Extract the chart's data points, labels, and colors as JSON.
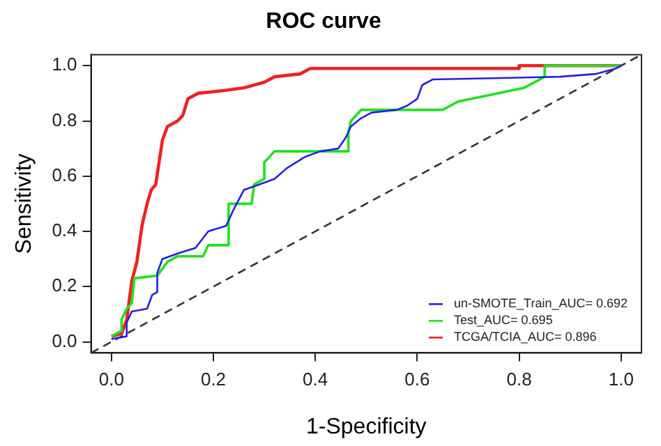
{
  "chart_data": {
    "type": "line",
    "title": "ROC curve",
    "xlabel": "1-Specificity",
    "ylabel": "Sensitivity",
    "xlim": [
      -0.04,
      1.04
    ],
    "ylim": [
      -0.04,
      1.04
    ],
    "xticks": [
      {
        "value": 0,
        "label": "0.0"
      },
      {
        "value": 0.2,
        "label": "0.2"
      },
      {
        "value": 0.4,
        "label": "0.4"
      },
      {
        "value": 0.6,
        "label": "0.6"
      },
      {
        "value": 0.8,
        "label": "0.8"
      },
      {
        "value": 1,
        "label": "1.0"
      }
    ],
    "yticks": [
      {
        "value": 0,
        "label": "0.0"
      },
      {
        "value": 0.2,
        "label": "0.2"
      },
      {
        "value": 0.4,
        "label": "0.4"
      },
      {
        "value": 0.6,
        "label": "0.6"
      },
      {
        "value": 0.8,
        "label": "0.8"
      },
      {
        "value": 1,
        "label": "1.0"
      }
    ],
    "grid": false,
    "legend": "bottom right",
    "marker": "none",
    "series": [
      {
        "name": "un-SMOTE_Train_AUC= 0.692",
        "color": "#2020e0",
        "x": [
          0,
          0.03,
          0.03,
          0.04,
          0.07,
          0.08,
          0.09,
          0.09,
          0.1,
          0.13,
          0.165,
          0.19,
          0.225,
          0.24,
          0.26,
          0.29,
          0.32,
          0.345,
          0.38,
          0.41,
          0.445,
          0.46,
          0.47,
          0.49,
          0.51,
          0.56,
          0.58,
          0.6,
          0.61,
          0.63,
          0.88,
          0.95,
          0.99,
          1
        ],
        "values": [
          0.01,
          0.02,
          0.07,
          0.11,
          0.12,
          0.17,
          0.18,
          0.25,
          0.3,
          0.32,
          0.34,
          0.4,
          0.42,
          0.48,
          0.55,
          0.57,
          0.59,
          0.63,
          0.67,
          0.69,
          0.7,
          0.74,
          0.78,
          0.81,
          0.83,
          0.84,
          0.855,
          0.88,
          0.93,
          0.95,
          0.96,
          0.97,
          0.99,
          1
        ]
      },
      {
        "name": "Test_AUC= 0.695",
        "color": "#20e020",
        "x": [
          0,
          0.02,
          0.02,
          0.03,
          0.04,
          0.045,
          0.09,
          0.11,
          0.13,
          0.18,
          0.19,
          0.23,
          0.23,
          0.275,
          0.28,
          0.3,
          0.3,
          0.32,
          0.465,
          0.465,
          0.47,
          0.49,
          0.65,
          0.68,
          0.81,
          0.85,
          0.85,
          1
        ],
        "values": [
          0.02,
          0.04,
          0.08,
          0.12,
          0.14,
          0.23,
          0.24,
          0.29,
          0.31,
          0.31,
          0.35,
          0.35,
          0.5,
          0.5,
          0.57,
          0.59,
          0.65,
          0.69,
          0.69,
          0.76,
          0.8,
          0.84,
          0.84,
          0.87,
          0.92,
          0.96,
          1,
          1
        ]
      },
      {
        "name": "TCGA/TCIA_AUC= 0.896",
        "color": "#f02020",
        "x": [
          0,
          0.02,
          0.03,
          0.04,
          0.05,
          0.06,
          0.07,
          0.078,
          0.087,
          0.1,
          0.11,
          0.13,
          0.14,
          0.15,
          0.17,
          0.22,
          0.26,
          0.3,
          0.32,
          0.37,
          0.39,
          0.8,
          0.8,
          1
        ],
        "values": [
          0.02,
          0.03,
          0.08,
          0.22,
          0.29,
          0.42,
          0.5,
          0.55,
          0.57,
          0.73,
          0.78,
          0.8,
          0.82,
          0.88,
          0.9,
          0.91,
          0.92,
          0.94,
          0.96,
          0.97,
          0.99,
          0.99,
          1,
          1
        ]
      },
      {
        "color": "#333333",
        "line_style": "dashed",
        "x": [
          -0.04,
          1.04
        ],
        "values": [
          -0.04,
          1.04
        ]
      }
    ]
  }
}
